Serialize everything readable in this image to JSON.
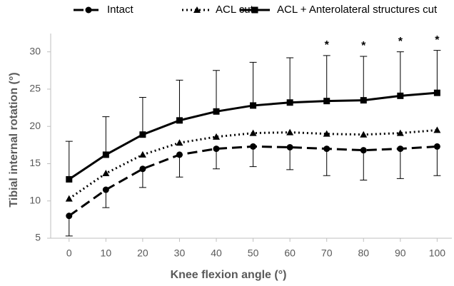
{
  "chart_data": {
    "type": "line",
    "x_label": "Knee flexion angle (°)",
    "y_label": "Tibial internal rotation (°)",
    "x": [
      0,
      10,
      20,
      30,
      40,
      50,
      60,
      70,
      80,
      90,
      100
    ],
    "series": [
      {
        "name": "Intact",
        "color": "#000000",
        "dash": "dashed",
        "marker": "circle",
        "error_direction": "down",
        "values": [
          8.0,
          11.5,
          14.3,
          16.2,
          17.0,
          17.3,
          17.2,
          17.0,
          16.8,
          17.0,
          17.3
        ],
        "errors": [
          2.7,
          2.4,
          2.5,
          3.0,
          2.7,
          2.7,
          3.0,
          3.6,
          4.0,
          4.0,
          3.9
        ]
      },
      {
        "name": "ACL cut",
        "color": "#000000",
        "dash": "dotted",
        "marker": "triangle",
        "values": [
          10.3,
          13.7,
          16.2,
          17.8,
          18.6,
          19.1,
          19.2,
          19.0,
          18.9,
          19.1,
          19.5
        ]
      },
      {
        "name": "ACL + Anterolateral structures cut",
        "color": "#000000",
        "dash": "solid",
        "marker": "square",
        "error_direction": "up",
        "values": [
          12.9,
          16.2,
          18.9,
          20.8,
          22.0,
          22.8,
          23.2,
          23.4,
          23.5,
          24.1,
          24.5
        ],
        "errors": [
          5.1,
          5.1,
          5.0,
          5.4,
          5.5,
          5.8,
          6.0,
          6.1,
          5.9,
          5.9,
          5.7
        ]
      }
    ],
    "annotations": [
      {
        "x": 70,
        "text": "*"
      },
      {
        "x": 80,
        "text": "*"
      },
      {
        "x": 90,
        "text": "*"
      },
      {
        "x": 100,
        "text": "*"
      }
    ],
    "xlim": [
      -5,
      104
    ],
    "xticks": [
      0,
      10,
      20,
      30,
      40,
      50,
      60,
      70,
      80,
      90,
      100
    ],
    "ylim": [
      5,
      31.5
    ],
    "yticks": [
      5,
      10,
      15,
      20,
      25,
      30
    ],
    "legend": "top",
    "grid": false
  }
}
